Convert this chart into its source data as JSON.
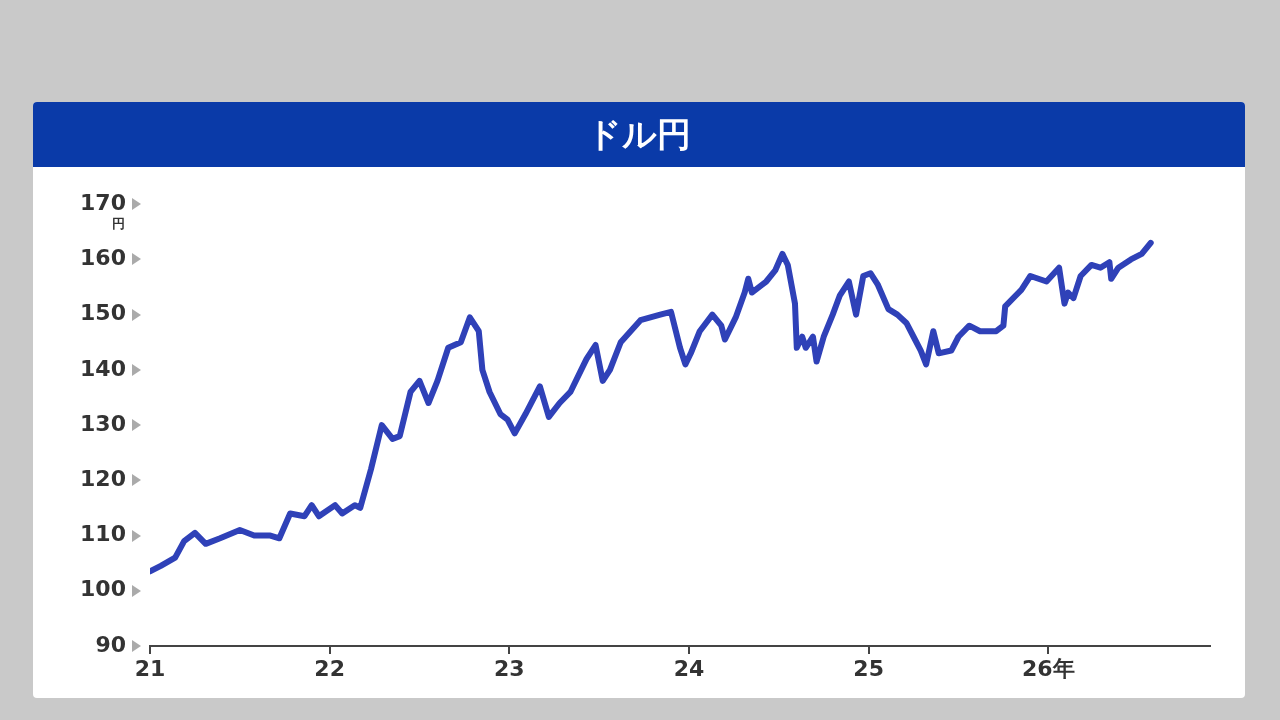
{
  "chart_data": {
    "type": "line",
    "title": "ドル円",
    "ylabel": "円",
    "x": [
      21.0,
      21.06,
      21.14,
      21.19,
      21.25,
      21.31,
      21.39,
      21.5,
      21.58,
      21.67,
      21.72,
      21.78,
      21.86,
      21.9,
      21.94,
      22.03,
      22.07,
      22.14,
      22.17,
      22.23,
      22.29,
      22.35,
      22.39,
      22.45,
      22.5,
      22.55,
      22.6,
      22.66,
      22.73,
      22.78,
      22.83,
      22.85,
      22.89,
      22.95,
      22.99,
      23.03,
      23.09,
      23.17,
      23.22,
      23.28,
      23.34,
      23.4,
      23.43,
      23.48,
      23.52,
      23.56,
      23.62,
      23.73,
      23.84,
      23.9,
      23.95,
      23.98,
      24.01,
      24.06,
      24.13,
      24.18,
      24.2,
      24.26,
      24.31,
      24.33,
      24.35,
      24.43,
      24.48,
      24.52,
      24.55,
      24.59,
      24.6,
      24.63,
      24.65,
      24.69,
      24.71,
      24.75,
      24.8,
      24.84,
      24.89,
      24.93,
      24.97,
      25.01,
      25.05,
      25.11,
      25.16,
      25.21,
      25.25,
      25.29,
      25.32,
      25.36,
      25.39,
      25.46,
      25.5,
      25.56,
      25.62,
      25.71,
      25.75,
      25.76,
      25.85,
      25.9,
      25.99,
      26.06,
      26.09,
      26.11,
      26.14,
      26.18,
      26.24,
      26.29,
      26.34,
      26.35,
      26.39,
      26.46,
      26.52,
      26.57
    ],
    "series": [
      {
        "color": "#2f41b8",
        "values": [
          103.5,
          104.5,
          106,
          109,
          110.5,
          108.5,
          109.5,
          111,
          110,
          110,
          109.5,
          114,
          113.5,
          115.5,
          113.5,
          115.5,
          114,
          115.5,
          115,
          122,
          130,
          127.5,
          128,
          136,
          138,
          134,
          138,
          144,
          145,
          149.5,
          147,
          140,
          136,
          132,
          131,
          128.5,
          132,
          137,
          131.5,
          134,
          136,
          140,
          142,
          144.5,
          138,
          140,
          145,
          149,
          150,
          150.5,
          144,
          141,
          143,
          147,
          150,
          148,
          145.5,
          149.5,
          154,
          156.5,
          154,
          156,
          158,
          161,
          159,
          152,
          144,
          146,
          144,
          146,
          141.5,
          146,
          150,
          153.5,
          156,
          150,
          157,
          157.5,
          155.5,
          151,
          150,
          148.5,
          146,
          143.5,
          141,
          147,
          143,
          143.5,
          146,
          148,
          147,
          147,
          148,
          151.5,
          154.5,
          157,
          156,
          158.5,
          152,
          154,
          153,
          157,
          159,
          158.5,
          159.5,
          156.5,
          158.5,
          160,
          161,
          163
        ]
      }
    ],
    "xlim": [
      21,
      26.9
    ],
    "xticks": [
      21,
      22,
      23,
      24,
      25,
      {
        "value": 26,
        "label": "26年"
      }
    ],
    "ylim": [
      90,
      170
    ],
    "yticks": [
      90,
      100,
      110,
      120,
      130,
      140,
      150,
      160,
      170
    ],
    "marker": "none",
    "line_style": "solid",
    "legend": false,
    "grid": false
  }
}
